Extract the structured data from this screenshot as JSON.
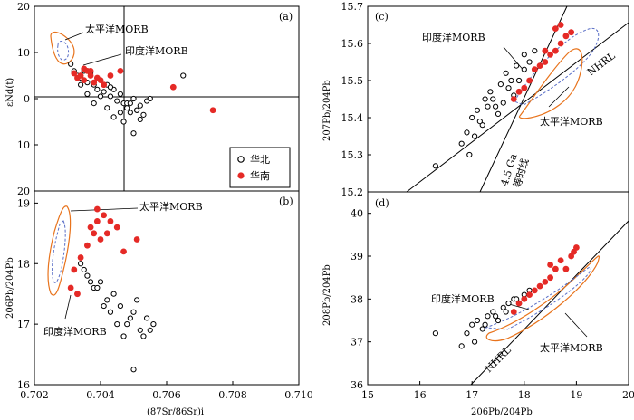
{
  "chart_data": [
    {
      "panel": "(a)",
      "type": "scatter",
      "ylabel": "εNd(t)",
      "xlim": [
        0.702,
        0.71
      ],
      "ylim": [
        -20,
        20
      ],
      "y_ticks": [
        20,
        10,
        0,
        10,
        20
      ],
      "reference_lines": {
        "vertical_x": 0.7045,
        "horizontal_y": 0
      },
      "legend": [
        "华北",
        "华南"
      ],
      "annotations": [
        "太平洋MORB",
        "印度洋MORB"
      ],
      "series": [
        {
          "name": "华北",
          "marker": "open-circle",
          "x": [
            0.7031,
            0.7032,
            0.7033,
            0.7034,
            0.7035,
            0.7036,
            0.7037,
            0.7038,
            0.7039,
            0.704,
            0.7041,
            0.7042,
            0.7043,
            0.7044,
            0.7045,
            0.7046,
            0.7047,
            0.7048,
            0.7049,
            0.705,
            0.7051,
            0.7052,
            0.7053,
            0.7054,
            0.7034,
            0.7036,
            0.7038,
            0.704,
            0.7042,
            0.7044,
            0.7046,
            0.7048,
            0.705,
            0.7052,
            0.7043,
            0.7047,
            0.7055,
            0.7065,
            0.7051,
            0.7049
          ],
          "y": [
            7.5,
            6.0,
            5.0,
            4.5,
            6.0,
            3.5,
            5.5,
            3.0,
            2.0,
            4.0,
            1.5,
            3.0,
            0.5,
            2.0,
            -0.5,
            1.0,
            -1.0,
            -2.0,
            -3.0,
            0.0,
            -2.5,
            -1.5,
            -3.5,
            -0.5,
            3.0,
            1.0,
            -1.0,
            0.5,
            -2.0,
            -4.0,
            -3.0,
            -1.0,
            -7.5,
            -4.5,
            2.5,
            -5.0,
            0.0,
            5.0,
            -2.5,
            -1.0
          ]
        },
        {
          "name": "华南",
          "marker": "filled-circle",
          "x": [
            0.7032,
            0.7033,
            0.7034,
            0.7035,
            0.7036,
            0.7037,
            0.7038,
            0.7039,
            0.704,
            0.7041,
            0.7043,
            0.7046,
            0.7062,
            0.7074,
            0.7035,
            0.7037
          ],
          "y": [
            5.5,
            4.5,
            5.0,
            4.0,
            6.0,
            5.0,
            3.5,
            4.5,
            4.0,
            3.0,
            5.0,
            6.0,
            2.5,
            -2.5,
            6.5,
            6.0
          ]
        }
      ]
    },
    {
      "panel": "(b)",
      "type": "scatter",
      "xlabel": "(87Sr/86Sr)i",
      "ylabel": "206Pb/204Pb",
      "xlim": [
        0.702,
        0.71
      ],
      "ylim": [
        16,
        19.2
      ],
      "x_ticks": [
        "0.702",
        "0.704",
        "0.706",
        "0.708",
        "0.710"
      ],
      "y_ticks": [
        "16",
        "17",
        "18",
        "19"
      ],
      "annotations": [
        "太平洋MORB",
        "印度洋MORB"
      ],
      "series": [
        {
          "name": "华北",
          "marker": "open-circle",
          "x": [
            0.7032,
            0.7034,
            0.7036,
            0.7038,
            0.704,
            0.7042,
            0.7044,
            0.7046,
            0.7048,
            0.705,
            0.7052,
            0.7054,
            0.7056,
            0.7035,
            0.7039,
            0.7043,
            0.7047,
            0.7051,
            0.7055,
            0.7041,
            0.7045,
            0.7049,
            0.7053,
            0.7037,
            0.705
          ],
          "y": [
            17.9,
            18.0,
            17.8,
            17.6,
            17.7,
            17.4,
            17.5,
            17.3,
            17.0,
            17.2,
            16.9,
            17.1,
            17.0,
            17.9,
            17.6,
            17.2,
            16.8,
            17.4,
            16.9,
            17.3,
            17.0,
            17.1,
            16.8,
            17.7,
            16.25
          ]
        },
        {
          "name": "华南",
          "marker": "filled-circle",
          "x": [
            0.7031,
            0.7032,
            0.7034,
            0.7036,
            0.7037,
            0.7038,
            0.7039,
            0.704,
            0.7041,
            0.7042,
            0.7045,
            0.7047,
            0.7051,
            0.7033,
            0.7039,
            0.7043
          ],
          "y": [
            17.6,
            17.9,
            18.1,
            18.3,
            18.6,
            18.5,
            18.7,
            18.4,
            18.8,
            18.5,
            18.6,
            18.2,
            18.4,
            17.5,
            18.9,
            18.7
          ]
        }
      ]
    },
    {
      "panel": "(c)",
      "type": "scatter",
      "ylabel": "207Pb/204Pb",
      "xlim": [
        15,
        20
      ],
      "ylim": [
        15.2,
        15.7
      ],
      "y_ticks": [
        "15.7",
        "15.6",
        "15.5",
        "15.4",
        "15.3",
        "15.2"
      ],
      "annotations": [
        "印度洋MORB",
        "NHRL",
        "太平洋MORB",
        "4.5 Ga",
        "等时线"
      ],
      "series": [
        {
          "name": "华北",
          "marker": "open-circle",
          "x": [
            16.3,
            16.8,
            16.9,
            17.0,
            17.1,
            17.2,
            17.3,
            17.4,
            17.5,
            17.6,
            17.7,
            17.8,
            17.9,
            18.0,
            18.1,
            18.2,
            16.95,
            17.05,
            17.15,
            17.25,
            17.35,
            17.45,
            17.55,
            17.65,
            17.75,
            17.85,
            18.0
          ],
          "y": [
            15.27,
            15.33,
            15.36,
            15.4,
            15.42,
            15.38,
            15.43,
            15.45,
            15.41,
            15.44,
            15.48,
            15.46,
            15.5,
            15.53,
            15.55,
            15.58,
            15.3,
            15.35,
            15.39,
            15.45,
            15.47,
            15.43,
            15.49,
            15.52,
            15.5,
            15.54,
            15.57
          ]
        },
        {
          "name": "华南",
          "marker": "filled-circle",
          "x": [
            17.8,
            17.9,
            18.0,
            18.1,
            18.2,
            18.3,
            18.4,
            18.5,
            18.6,
            18.7,
            18.8,
            18.9,
            18.6,
            18.7,
            18.4
          ],
          "y": [
            15.45,
            15.47,
            15.48,
            15.5,
            15.53,
            15.54,
            15.55,
            15.57,
            15.58,
            15.6,
            15.62,
            15.63,
            15.64,
            15.65,
            15.58
          ]
        }
      ]
    },
    {
      "panel": "(d)",
      "type": "scatter",
      "xlabel": "206Pb/204Pb",
      "ylabel": "208Pb/204Pb",
      "xlim": [
        15,
        20
      ],
      "ylim": [
        36,
        40.5
      ],
      "x_ticks": [
        "15",
        "16",
        "17",
        "18",
        "19",
        "20"
      ],
      "y_ticks": [
        "40",
        "39",
        "38",
        "37",
        "36"
      ],
      "annotations": [
        "印度洋MORB",
        "NHRL",
        "太平洋MORB"
      ],
      "series": [
        {
          "name": "华北",
          "marker": "open-circle",
          "x": [
            16.3,
            16.8,
            16.9,
            17.0,
            17.1,
            17.2,
            17.3,
            17.4,
            17.5,
            17.6,
            17.7,
            17.8,
            17.9,
            18.0,
            18.1,
            17.05,
            17.25,
            17.45,
            17.65,
            17.85
          ],
          "y": [
            37.2,
            36.9,
            37.2,
            37.4,
            37.5,
            37.3,
            37.6,
            37.7,
            37.5,
            37.8,
            37.9,
            38.0,
            37.9,
            38.1,
            38.2,
            37.0,
            37.4,
            37.6,
            37.7,
            38.0
          ]
        },
        {
          "name": "华南",
          "marker": "filled-circle",
          "x": [
            17.8,
            17.9,
            18.0,
            18.1,
            18.2,
            18.3,
            18.4,
            18.5,
            18.6,
            18.7,
            18.8,
            18.9,
            18.95,
            19.0,
            18.5
          ],
          "y": [
            37.7,
            37.9,
            38.0,
            38.1,
            38.2,
            38.3,
            38.4,
            38.5,
            38.7,
            38.9,
            38.7,
            39.0,
            39.1,
            39.2,
            38.8
          ]
        }
      ]
    }
  ]
}
